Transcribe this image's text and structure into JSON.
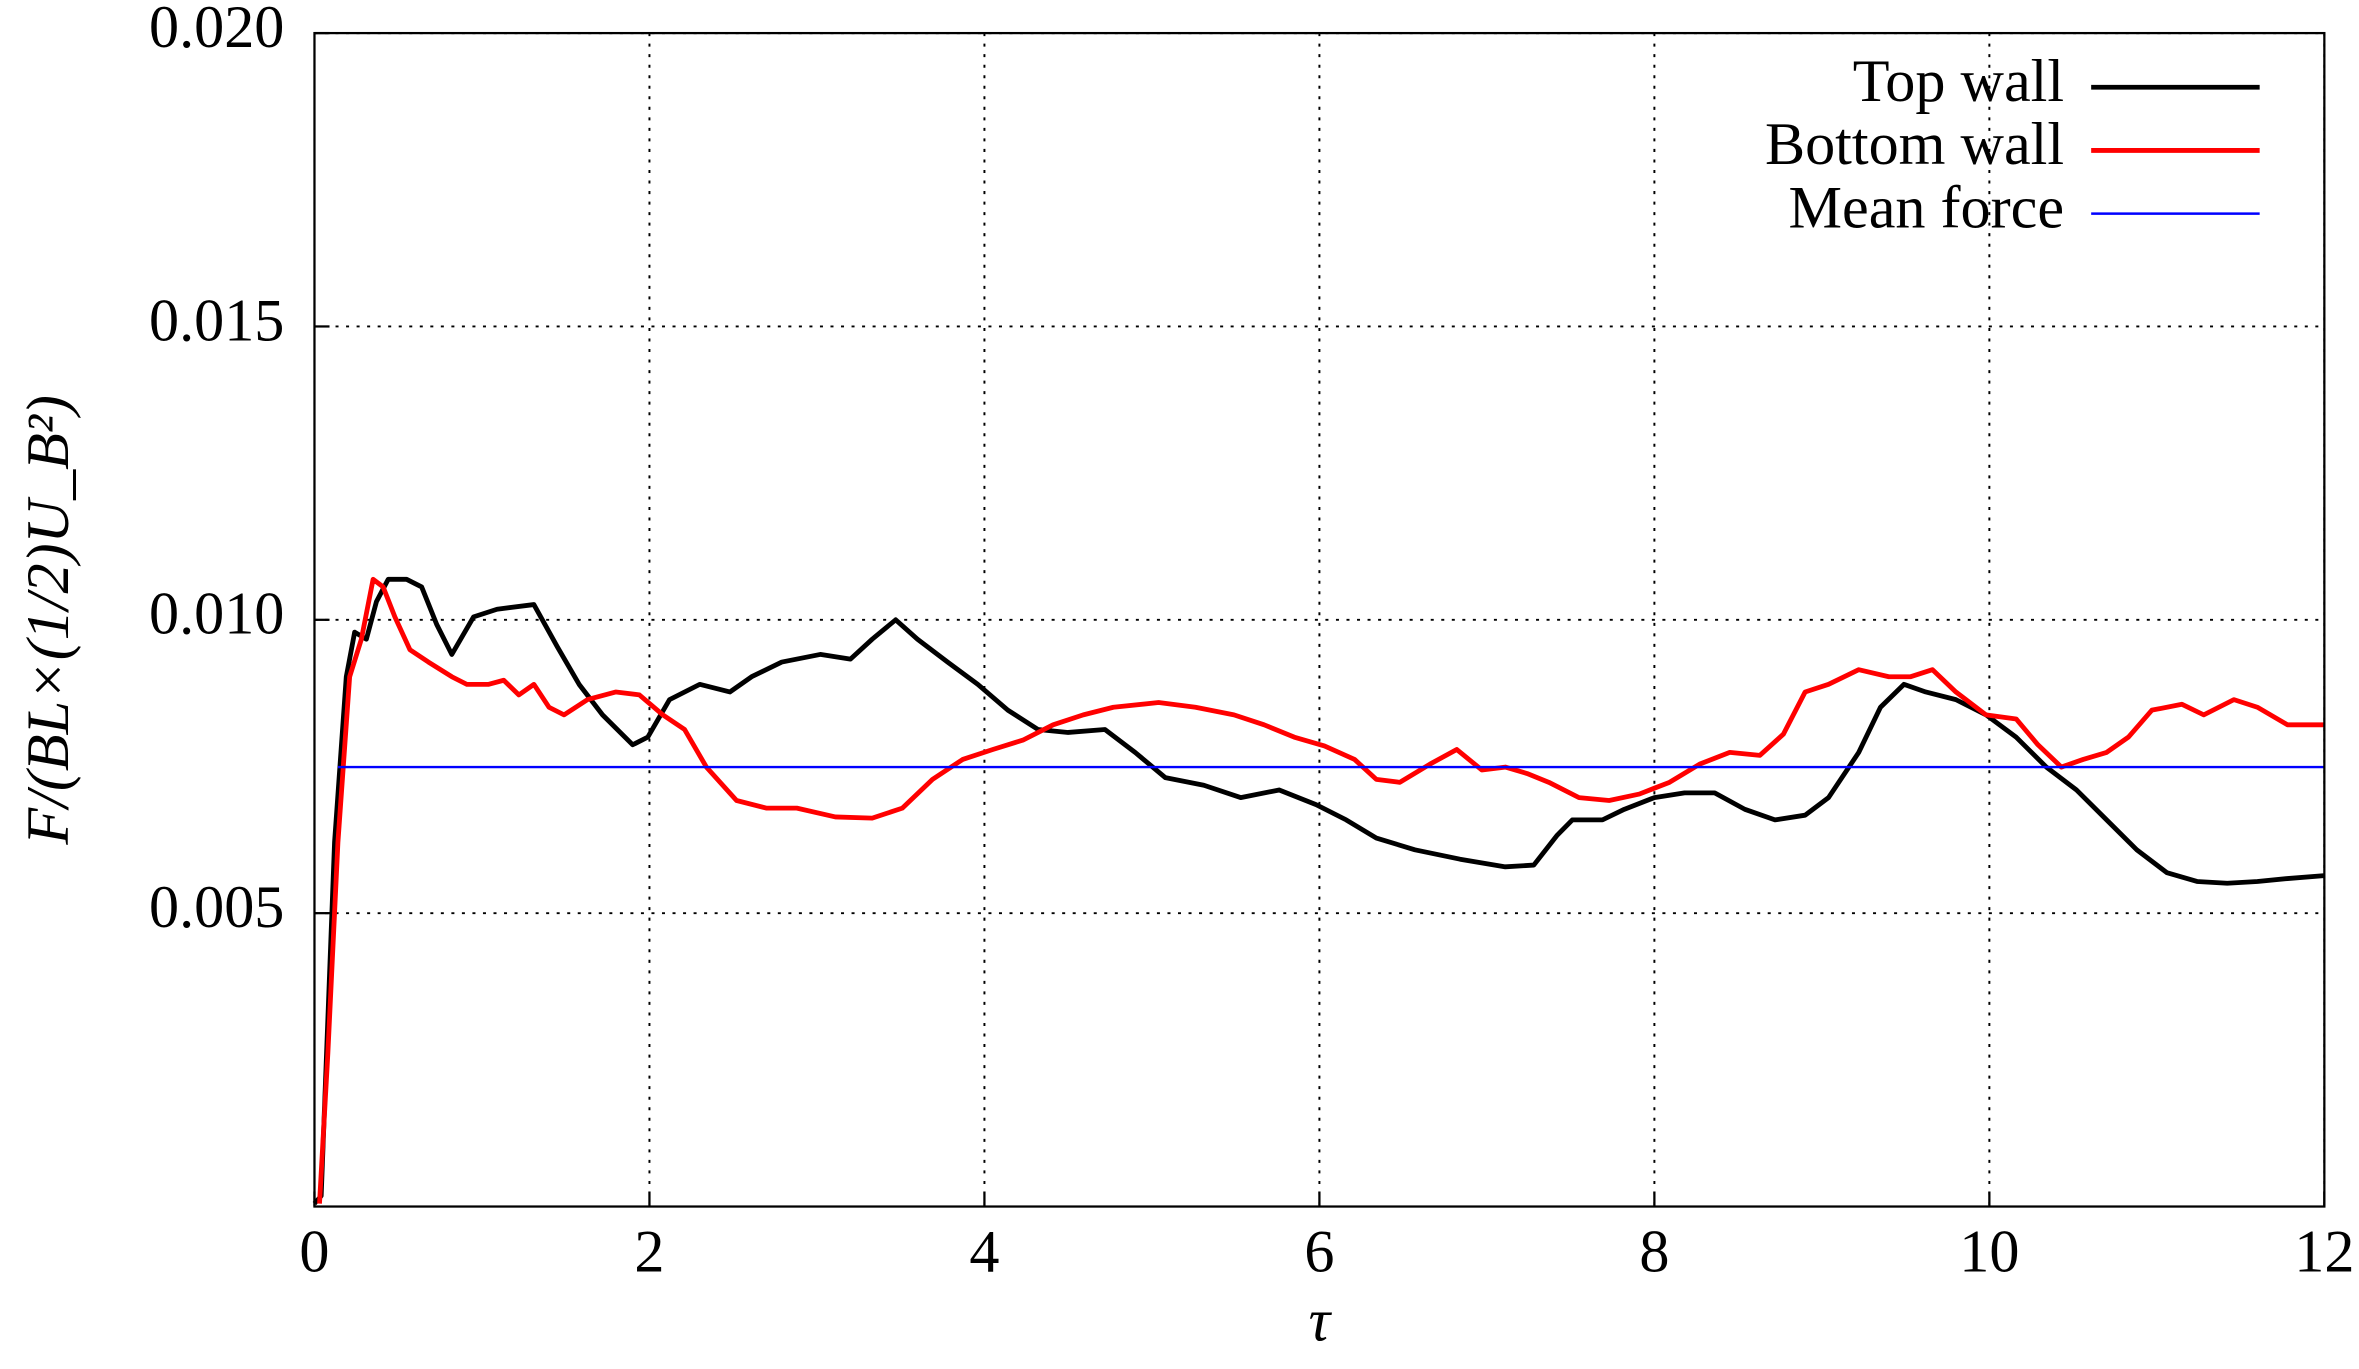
{
  "chart_data": {
    "type": "line",
    "xlabel": "τ",
    "ylabel": "F/(BL×(1/2)U_B²)",
    "xlim": [
      0,
      12
    ],
    "xticks": [
      0,
      2,
      4,
      6,
      8,
      10,
      12
    ],
    "ylim": [
      0,
      0.02
    ],
    "yticks": [
      0.005,
      {
        "value": 0.01,
        "label": "0.010"
      },
      0.015,
      {
        "value": 0.02,
        "label": "0.020"
      }
    ],
    "grid": true,
    "legend": "top-right",
    "series": [
      {
        "name": "Top wall",
        "color": "#000000",
        "x": [
          0,
          0.04,
          0.12,
          0.19,
          0.24,
          0.31,
          0.37,
          0.44,
          0.55,
          0.64,
          0.73,
          0.82,
          0.95,
          1.09,
          1.31,
          1.45,
          1.58,
          1.72,
          1.9,
          1.99,
          2.12,
          2.3,
          2.48,
          2.61,
          2.79,
          3.02,
          3.2,
          3.33,
          3.47,
          3.6,
          3.78,
          3.96,
          4.14,
          4.32,
          4.5,
          4.72,
          4.9,
          5.08,
          5.31,
          5.53,
          5.76,
          5.98,
          6.16,
          6.34,
          6.57,
          6.84,
          7.11,
          7.28,
          7.42,
          7.51,
          7.69,
          7.82,
          8.0,
          8.18,
          8.36,
          8.54,
          8.72,
          8.9,
          9.04,
          9.22,
          9.35,
          9.49,
          9.62,
          9.8,
          9.98,
          10.16,
          10.34,
          10.52,
          10.7,
          10.88,
          11.06,
          11.24,
          11.42,
          11.6,
          11.78,
          12
        ],
        "values": [
          5e-05,
          0.00018,
          0.00621,
          0.00903,
          0.00979,
          0.00967,
          0.01031,
          0.01069,
          0.01069,
          0.01056,
          0.00992,
          0.00941,
          0.01005,
          0.01018,
          0.01026,
          0.00954,
          0.0089,
          0.00838,
          0.00787,
          0.008,
          0.00864,
          0.0089,
          0.00877,
          0.00903,
          0.00928,
          0.00941,
          0.00933,
          0.00967,
          0.01,
          0.00967,
          0.00928,
          0.0089,
          0.00846,
          0.00813,
          0.00808,
          0.00813,
          0.00774,
          0.00731,
          0.00718,
          0.00697,
          0.0071,
          0.00685,
          0.00659,
          0.00628,
          0.00608,
          0.00592,
          0.00579,
          0.00582,
          0.00633,
          0.00659,
          0.00659,
          0.00677,
          0.00697,
          0.00705,
          0.00705,
          0.00677,
          0.00659,
          0.00667,
          0.00697,
          0.00774,
          0.00851,
          0.0089,
          0.00877,
          0.00864,
          0.00838,
          0.008,
          0.00749,
          0.0071,
          0.00659,
          0.00608,
          0.00569,
          0.00554,
          0.00551,
          0.00554,
          0.00559,
          0.00564
        ]
      },
      {
        "name": "Bottom wall",
        "color": "#ff0000",
        "x": [
          0.03,
          0.08,
          0.14,
          0.21,
          0.28,
          0.35,
          0.41,
          0.48,
          0.57,
          0.68,
          0.82,
          0.91,
          1.04,
          1.13,
          1.22,
          1.31,
          1.4,
          1.49,
          1.63,
          1.8,
          1.94,
          2.08,
          2.21,
          2.34,
          2.52,
          2.7,
          2.88,
          3.11,
          3.33,
          3.51,
          3.69,
          3.87,
          4.05,
          4.23,
          4.41,
          4.59,
          4.77,
          5.04,
          5.26,
          5.49,
          5.67,
          5.85,
          6.03,
          6.21,
          6.34,
          6.48,
          6.66,
          6.82,
          6.97,
          7.11,
          7.24,
          7.37,
          7.55,
          7.73,
          7.91,
          8.09,
          8.27,
          8.45,
          8.63,
          8.77,
          8.9,
          9.04,
          9.22,
          9.4,
          9.53,
          9.66,
          9.8,
          9.98,
          10.16,
          10.29,
          10.43,
          10.56,
          10.7,
          10.83,
          10.97,
          11.15,
          11.28,
          11.46,
          11.6,
          11.78,
          12
        ],
        "values": [
          5e-05,
          0.00262,
          0.00621,
          0.00903,
          0.00967,
          0.01069,
          0.01056,
          0.01005,
          0.00949,
          0.00928,
          0.00903,
          0.0089,
          0.0089,
          0.00897,
          0.00872,
          0.0089,
          0.00851,
          0.00838,
          0.00864,
          0.00877,
          0.00872,
          0.00838,
          0.00813,
          0.00749,
          0.00692,
          0.00679,
          0.00679,
          0.00664,
          0.00662,
          0.00679,
          0.00728,
          0.00762,
          0.00779,
          0.00795,
          0.00821,
          0.00838,
          0.00851,
          0.00859,
          0.00851,
          0.00838,
          0.00821,
          0.008,
          0.00785,
          0.00762,
          0.00728,
          0.00723,
          0.00754,
          0.00779,
          0.00744,
          0.00749,
          0.00738,
          0.00723,
          0.00697,
          0.00692,
          0.00703,
          0.00723,
          0.00754,
          0.00774,
          0.00769,
          0.00805,
          0.00877,
          0.0089,
          0.00915,
          0.00903,
          0.00903,
          0.00915,
          0.00877,
          0.00838,
          0.00831,
          0.00787,
          0.00749,
          0.00762,
          0.00774,
          0.008,
          0.00846,
          0.00856,
          0.00838,
          0.00864,
          0.00851,
          0.00821,
          0.00821
        ]
      },
      {
        "name": "Mean force",
        "color": "#0000ff",
        "x": [
          0.14,
          12
        ],
        "values": [
          0.00749,
          0.00749
        ]
      }
    ]
  }
}
